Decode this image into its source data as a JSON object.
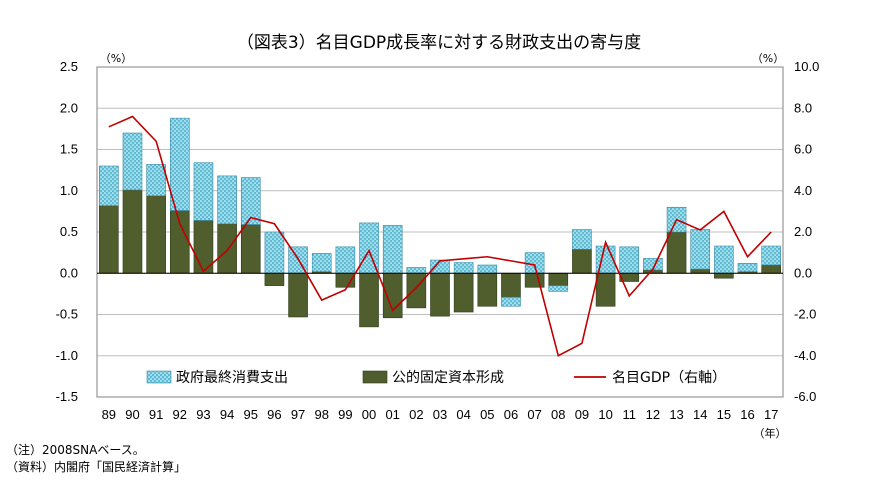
{
  "chart_data": {
    "type": "bar",
    "title": "（図表3）名目GDP成長率に対する財政支出の寄与度",
    "left_unit": "（%）",
    "right_unit": "（%）",
    "x_unit": "（年）",
    "categories": [
      "89",
      "90",
      "91",
      "92",
      "93",
      "94",
      "95",
      "96",
      "97",
      "98",
      "99",
      "00",
      "01",
      "02",
      "03",
      "04",
      "05",
      "06",
      "07",
      "08",
      "09",
      "10",
      "11",
      "12",
      "13",
      "14",
      "15",
      "16",
      "17"
    ],
    "ylim": [
      -1.5,
      2.5
    ],
    "y2lim": [
      -6.0,
      10.0
    ],
    "yticks": [
      "2.5",
      "2.0",
      "1.5",
      "1.0",
      "0.5",
      "0.0",
      "-0.5",
      "-1.0",
      "-1.5"
    ],
    "y2ticks": [
      "10.0",
      "8.0",
      "6.0",
      "4.0",
      "2.0",
      "0.0",
      "-2.0",
      "-4.0",
      "-6.0"
    ],
    "grid": true,
    "legend_position": "bottom-inside",
    "series": [
      {
        "name": "政府最終消費支出",
        "kind": "stacked-bar",
        "color": "#5bbcd6",
        "values": [
          0.48,
          0.69,
          0.38,
          1.12,
          0.7,
          0.58,
          0.57,
          0.5,
          0.32,
          0.22,
          0.32,
          0.61,
          0.58,
          0.07,
          0.16,
          0.13,
          0.1,
          -0.11,
          0.25,
          -0.07,
          0.24,
          0.33,
          0.32,
          0.14,
          0.3,
          0.48,
          0.33,
          0.1,
          0.23
        ]
      },
      {
        "name": "公的固定資本形成",
        "kind": "stacked-bar",
        "color": "#4f5e2c",
        "values": [
          0.82,
          1.01,
          0.94,
          0.76,
          0.64,
          0.6,
          0.59,
          -0.15,
          -0.53,
          0.02,
          -0.17,
          -0.65,
          -0.54,
          -0.42,
          -0.52,
          -0.47,
          -0.4,
          -0.29,
          -0.17,
          -0.15,
          0.29,
          -0.4,
          -0.1,
          0.04,
          0.5,
          0.05,
          -0.06,
          0.02,
          0.1
        ]
      },
      {
        "name": "名目GDP（右軸）",
        "kind": "line",
        "axis": "right",
        "color": "#c00000",
        "values": [
          7.1,
          7.6,
          6.4,
          2.4,
          0.1,
          1.1,
          2.7,
          2.4,
          0.7,
          -1.3,
          -0.8,
          1.1,
          -1.8,
          -0.7,
          0.6,
          0.7,
          0.8,
          0.6,
          0.4,
          -4.0,
          -3.4,
          1.5,
          -1.1,
          0.2,
          2.6,
          2.1,
          3.0,
          0.8,
          2.0
        ]
      }
    ]
  },
  "notes": {
    "line1": "（注）2008SNAベース。",
    "line2": "（資料）内閣府「国民経済計算」"
  }
}
